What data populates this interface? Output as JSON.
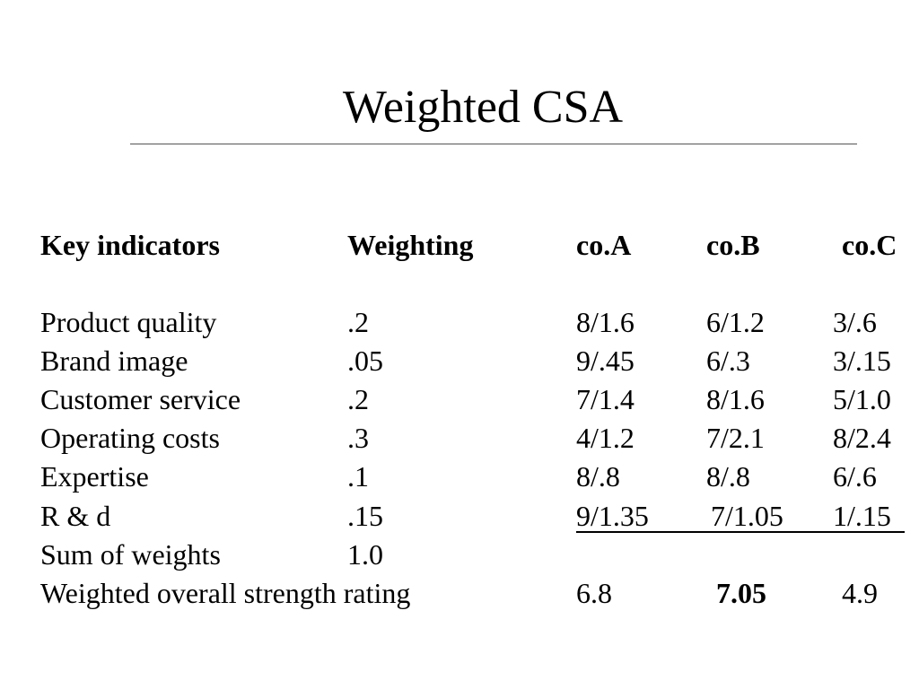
{
  "title": "Weighted CSA",
  "header": {
    "key_indicators": "Key indicators",
    "weighting": "Weighting",
    "co_a": "co.A",
    "co_b": "co.B",
    "co_c": "co.C"
  },
  "rows": [
    {
      "indicator": "Product quality",
      "weight": ".2",
      "a": "8/1.6",
      "b": "6/1.2",
      "c": "3/.6"
    },
    {
      "indicator": "Brand image",
      "weight": ".05",
      "a": "9/.45",
      "b": "6/.3",
      "c": "3/.15"
    },
    {
      "indicator": "Customer service",
      "weight": ".2",
      "a": "7/1.4",
      "b": "8/1.6",
      "c": "5/1.0"
    },
    {
      "indicator": "Operating costs",
      "weight": ".3",
      "a": "4/1.2",
      "b": "7/2.1",
      "c": "8/2.4"
    },
    {
      "indicator": "Expertise",
      "weight": ".1",
      "a": "8/.8",
      "b": "8/.8",
      "c": "6/.6"
    },
    {
      "indicator": "R & d",
      "weight": ".15",
      "a": "9/1.35",
      "b": "7/1.05",
      "c": "1/.15"
    }
  ],
  "sum_row": {
    "label": "Sum of weights",
    "value": "1.0"
  },
  "rating_row": {
    "label": "Weighted overall strength rating",
    "a": "6.8",
    "b": "7.05",
    "c": "4.9"
  }
}
